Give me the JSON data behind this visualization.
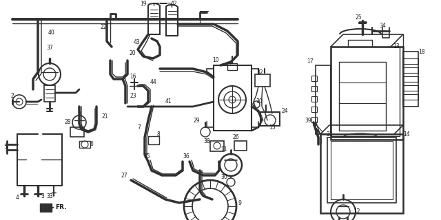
{
  "bg_color": "#ffffff",
  "line_color": "#303030",
  "text_color": "#1a1a1a",
  "figsize": [
    6.4,
    3.2
  ],
  "dpi": 100,
  "label_fs": 5.5
}
